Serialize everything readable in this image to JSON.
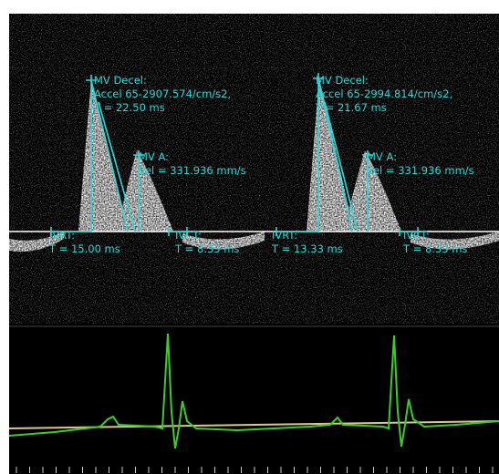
{
  "cycles": [
    {
      "decel": {
        "title": "MV Decel:",
        "accel": "Accel 65-2907.574/cm/s2,",
        "time": "T = 22.50 ms"
      },
      "a": {
        "title": "MV A:",
        "vel": "Vel = 331.936 mm/s"
      },
      "ivrt": {
        "title": "IVRT:",
        "time": "T = 15.00 ms"
      },
      "ivct": {
        "title": "IVCT:",
        "time": "T = 8.33 ms"
      }
    },
    {
      "decel": {
        "title": "MV Decel:",
        "accel": "Accel 65-2994.814/cm/s2,",
        "time": "T = 21.67 ms"
      },
      "a": {
        "title": "MV A:",
        "vel": "Vel = 331.936 mm/s"
      },
      "ivrt": {
        "title": "IVRT:",
        "time": "T = 13.33 ms"
      },
      "ivct": {
        "title": "IVCT:",
        "time": "T = 8.33 ms"
      }
    }
  ]
}
